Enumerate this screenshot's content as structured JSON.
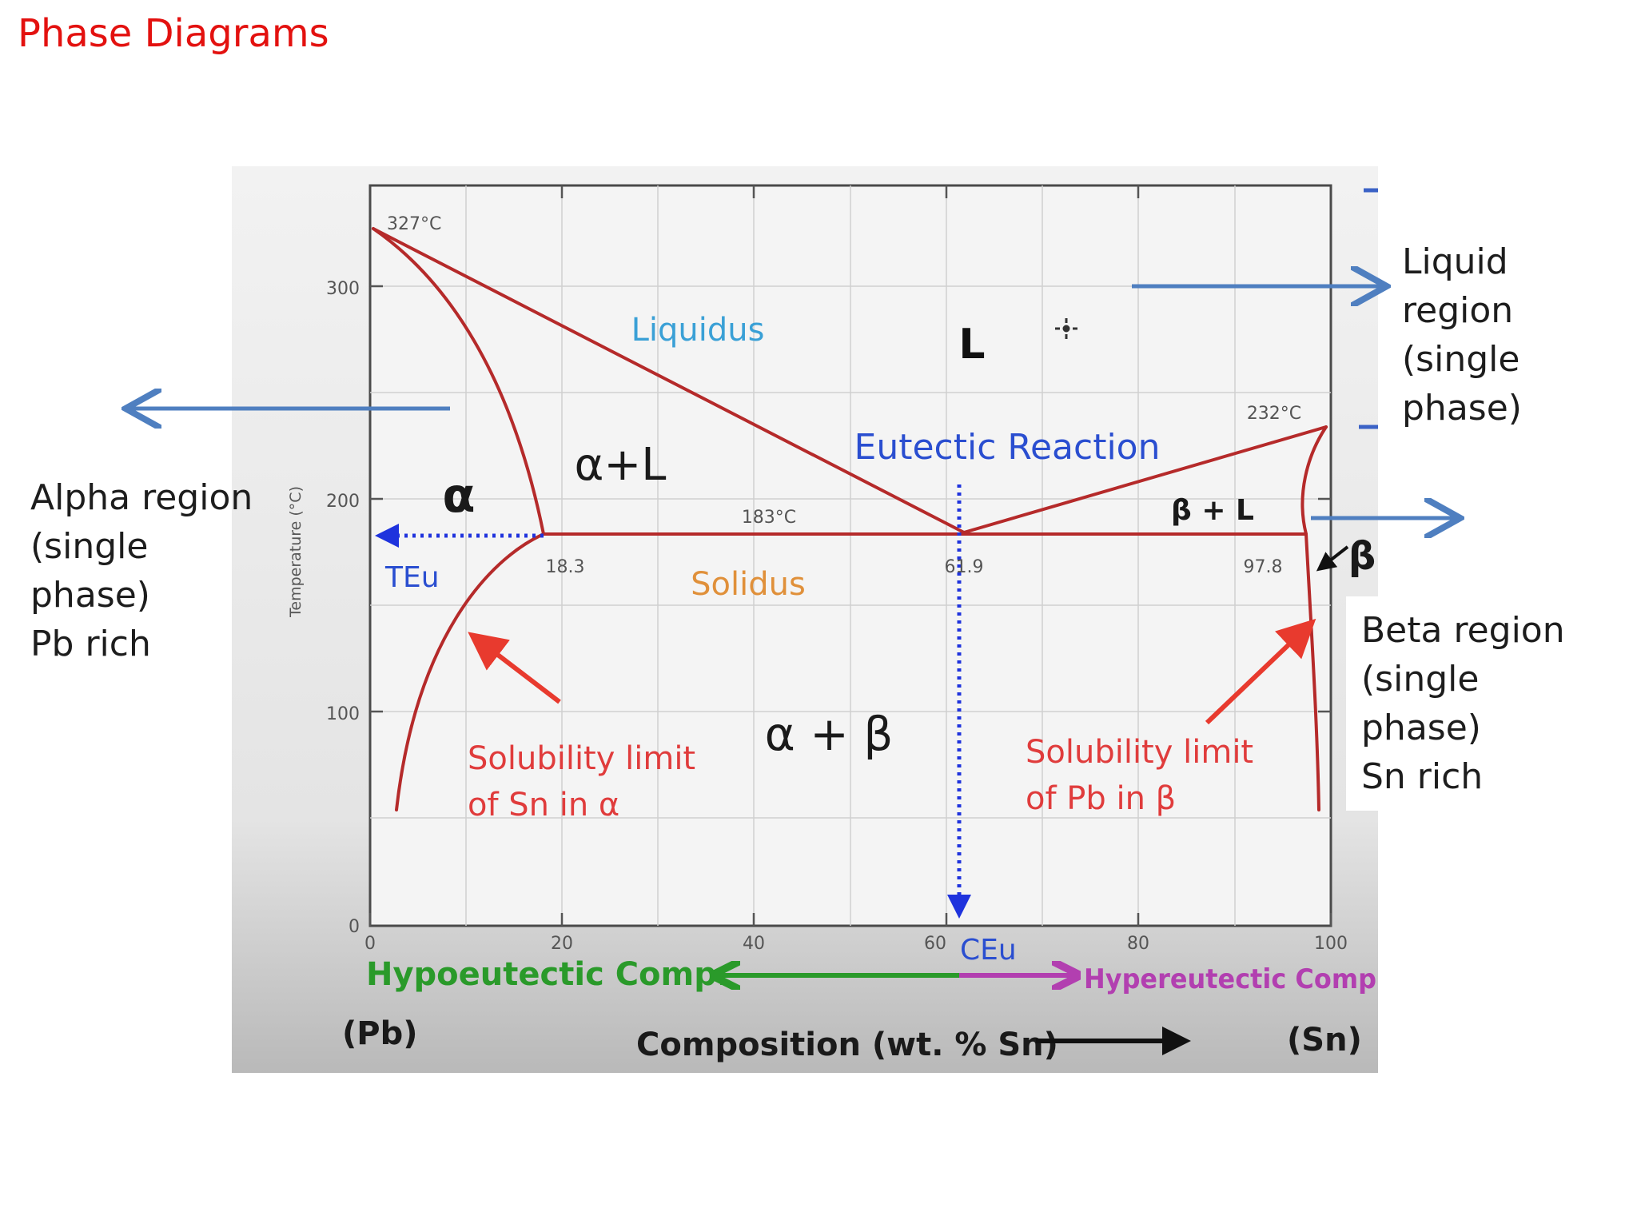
{
  "slide": {
    "title": "Phase Diagrams"
  },
  "annotations": {
    "alpha_region": [
      "Alpha region",
      "(single",
      "phase)",
      "Pb rich"
    ],
    "liquid_region": [
      "Liquid",
      "region",
      "(single",
      "phase)"
    ],
    "beta_region": [
      "Beta region",
      "(single",
      "phase)",
      "Sn rich"
    ]
  },
  "diagram": {
    "axis": {
      "y_label": "Temperature (°C)",
      "y_ticks": [
        "0",
        "100",
        "200",
        "300"
      ],
      "x_ticks": [
        "0",
        "20",
        "40",
        "60",
        "80",
        "100"
      ],
      "x_label": "Composition (wt. % Sn)",
      "left_end": "(Pb)",
      "right_end": "(Sn)"
    },
    "points": {
      "pb_melting": "327°C",
      "sn_melting": "232°C",
      "eutectic_temp": "183°C",
      "alpha_max_solubility": "18.3",
      "eutectic_comp": "61.9",
      "beta_max_solubility": "97.8"
    },
    "regions": {
      "liquid": "L",
      "alpha": "α",
      "alpha_liquid": "α+L",
      "beta_liquid": "β + L",
      "beta": "β",
      "alpha_beta": "α + β"
    },
    "labels": {
      "liquidus": "Liquidus",
      "solidus": "Solidus",
      "eutectic_reaction": "Eutectic Reaction",
      "t_eu": "TEu",
      "c_eu": "CEu",
      "solvus_alpha": [
        "Solubility limit",
        "of Sn in α"
      ],
      "solvus_beta": [
        "Solubility limit",
        "of Pb in β"
      ],
      "hypoeutectic": "Hypoeutectic Comp.",
      "hypereutectic": "Hypereutectic Comp"
    },
    "colors": {
      "phase_lines": "#b52a2a",
      "liquidus_label": "#3aa0d6",
      "eutectic_label": "#2a4ed0",
      "solidus_label": "#e0903a",
      "solvus_label": "#e03c3c",
      "dotted_marker": "#1f33dd",
      "hypoeutectic": "#2a9a2a",
      "hypereutectic": "#b23fb0",
      "callout_arrows": "#4f7fc0",
      "title": "#e3110f"
    }
  }
}
